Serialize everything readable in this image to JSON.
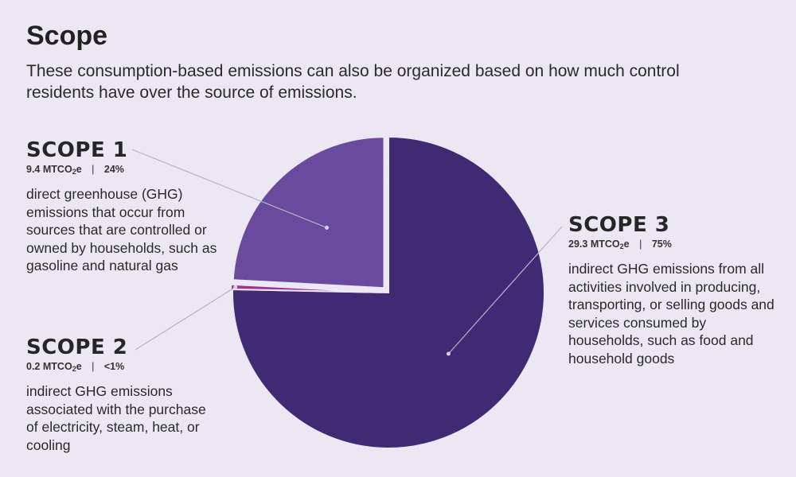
{
  "header": {
    "title": "Scope",
    "subtitle": "These consumption-based emissions can also be organized based on how much control residents have over the source of emissions."
  },
  "scopes": [
    {
      "heading": "SCOPE 1",
      "value": "9.4",
      "unit_prefix": "MTCO",
      "unit_sub": "2",
      "unit_suffix": "e",
      "percent_label": "24%",
      "description": "direct greenhouse (GHG) emissions that occur from sources that are controlled or owned by households, such as gasoline and natural gas"
    },
    {
      "heading": "SCOPE 2",
      "value": "0.2",
      "unit_prefix": "MTCO",
      "unit_sub": "2",
      "unit_suffix": "e",
      "percent_label": "<1%",
      "description": "indirect GHG emissions associated with the purchase of electricity, steam, heat, or cooling"
    },
    {
      "heading": "SCOPE 3",
      "value": "29.3",
      "unit_prefix": "MTCO",
      "unit_sub": "2",
      "unit_suffix": "e",
      "percent_label": "75%",
      "description": "indirect GHG emissions from all activities involved in producing, transporting, or selling goods and services consumed by households, such as food and household goods"
    }
  ],
  "chart_data": {
    "type": "pie",
    "title": "",
    "slices": [
      {
        "label": "SCOPE 3",
        "value": 29.3,
        "color": "#3f2a73",
        "exploded": false
      },
      {
        "label": "SCOPE 2",
        "value": 0.2,
        "color": "#a0338f",
        "exploded": true
      },
      {
        "label": "SCOPE 1",
        "value": 9.4,
        "color": "#6a4a9c",
        "exploded": true
      }
    ],
    "start_angle": "12 o'clock, clockwise",
    "legend": "callout labels"
  }
}
